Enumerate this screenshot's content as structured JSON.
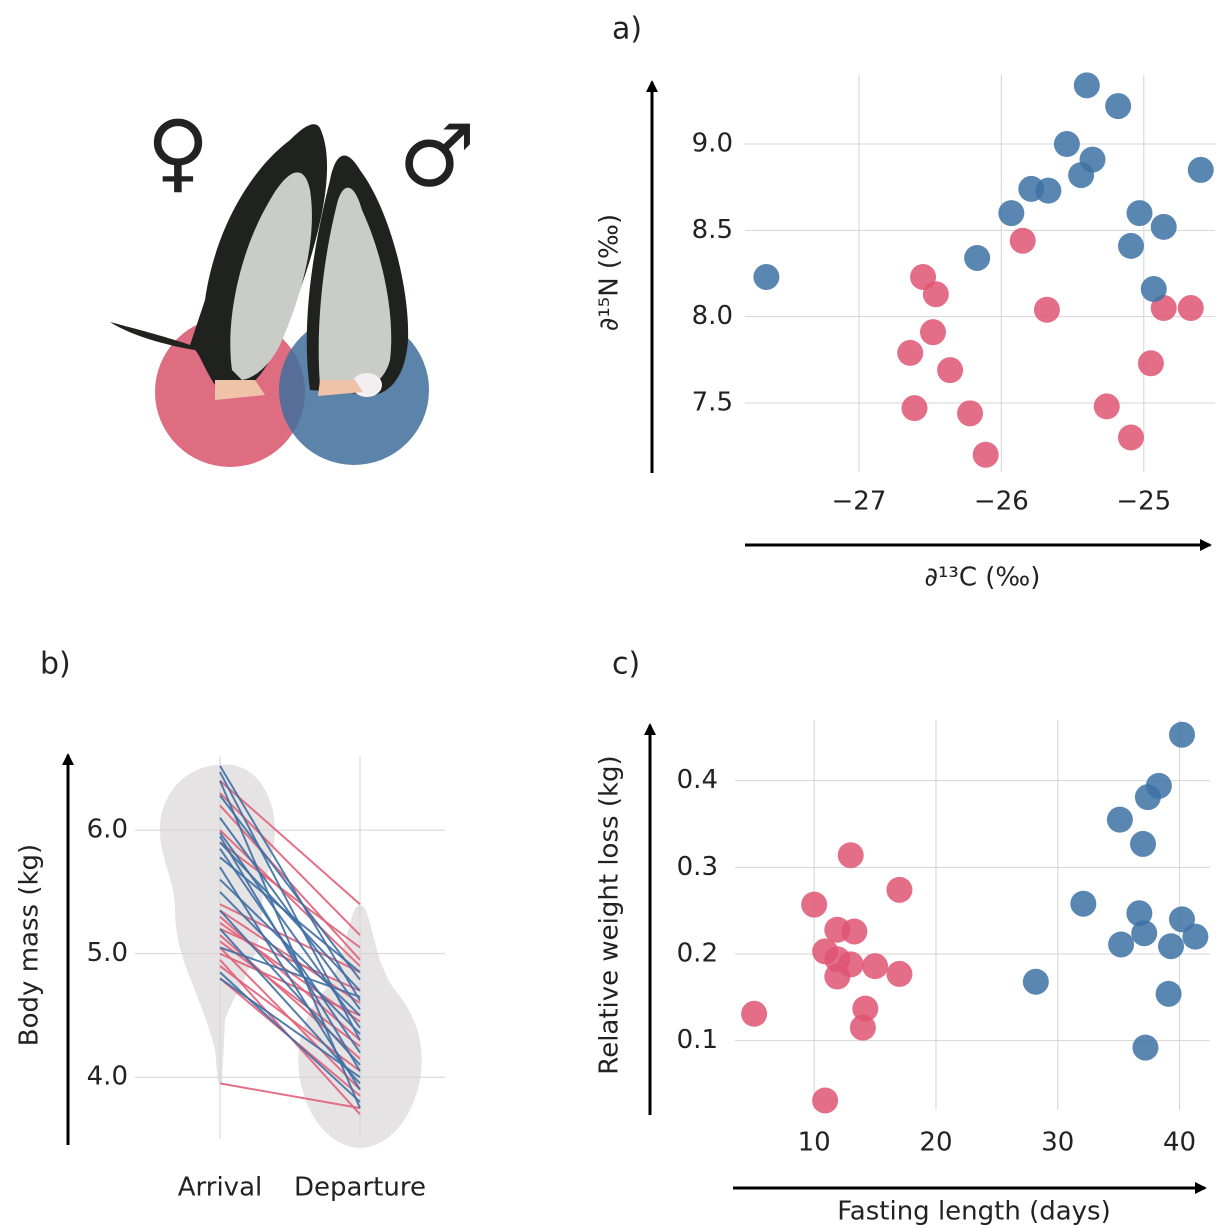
{
  "chart_data": [
    {
      "type": "scatter",
      "title": "a)",
      "x_label": "∂¹³C (‰)",
      "y_label": "∂¹⁵N (‰)",
      "xlim": [
        -27.8,
        -24.5
      ],
      "ylim": [
        7.1,
        9.4
      ],
      "xticks": [
        {
          "value": -27,
          "label": "−27"
        },
        {
          "value": -26,
          "label": "−26"
        },
        {
          "value": -25,
          "label": "−25"
        }
      ],
      "yticks": [
        7.5,
        {
          "value": 8.0,
          "label": "8.0"
        },
        8.5,
        {
          "value": 9.0,
          "label": "9.0"
        }
      ],
      "grid": true,
      "series": [
        {
          "name": "♀",
          "color": "#df5572",
          "x": [
            -25.85,
            -26.55,
            -26.46,
            -25.68,
            -26.48,
            -26.64,
            -26.36,
            -26.61,
            -26.22,
            -26.11,
            -25.26,
            -25.09,
            -24.95,
            -24.86,
            -24.67
          ],
          "values": [
            8.44,
            8.23,
            8.13,
            8.04,
            7.91,
            7.79,
            7.69,
            7.47,
            7.44,
            7.2,
            7.48,
            7.3,
            7.73,
            8.05,
            8.05
          ]
        },
        {
          "name": "♂",
          "color": "#3d72a4",
          "x": [
            -27.65,
            -26.17,
            -25.93,
            -25.79,
            -25.67,
            -25.54,
            -25.44,
            -25.36,
            -25.4,
            -25.18,
            -25.09,
            -25.03,
            -24.86,
            -24.93,
            -24.6
          ],
          "values": [
            8.23,
            8.34,
            8.6,
            8.74,
            8.73,
            9.0,
            8.82,
            8.91,
            9.34,
            9.22,
            8.41,
            8.6,
            8.52,
            8.16,
            8.85
          ]
        }
      ]
    },
    {
      "type": "line",
      "title": "b)",
      "y_label": "Body mass (kg)",
      "categories": [
        "Arrival",
        "Departure"
      ],
      "ylim": [
        3.5,
        6.6
      ],
      "yticks": [
        {
          "value": 4.0,
          "label": "4.0"
        },
        {
          "value": 5.0,
          "label": "5.0"
        },
        {
          "value": 6.0,
          "label": "6.0"
        }
      ],
      "grid": true,
      "series": [
        {
          "color": "#e0607a",
          "values": [
            6.4,
            5.4
          ]
        },
        {
          "color": "#e0607a",
          "values": [
            6.3,
            5.15
          ]
        },
        {
          "color": "#e0607a",
          "values": [
            6.2,
            4.95
          ]
        },
        {
          "color": "#e0607a",
          "values": [
            6.0,
            4.9
          ]
        },
        {
          "color": "#e0607a",
          "values": [
            5.9,
            5.05
          ]
        },
        {
          "color": "#e0607a",
          "values": [
            5.4,
            4.85
          ]
        },
        {
          "color": "#e0607a",
          "values": [
            5.35,
            4.6
          ]
        },
        {
          "color": "#e0607a",
          "values": [
            5.3,
            4.3
          ]
        },
        {
          "color": "#e0607a",
          "values": [
            5.25,
            4.45
          ]
        },
        {
          "color": "#e0607a",
          "values": [
            5.2,
            4.7
          ]
        },
        {
          "color": "#e0607a",
          "values": [
            5.15,
            4.15
          ]
        },
        {
          "color": "#e0607a",
          "values": [
            5.1,
            4.25
          ]
        },
        {
          "color": "#e0607a",
          "values": [
            5.05,
            3.9
          ]
        },
        {
          "color": "#e0607a",
          "values": [
            5.0,
            4.5
          ]
        },
        {
          "color": "#e0607a",
          "values": [
            4.95,
            3.7
          ]
        },
        {
          "color": "#e0607a",
          "values": [
            4.9,
            4.05
          ]
        },
        {
          "color": "#e0607a",
          "values": [
            4.8,
            3.85
          ]
        },
        {
          "color": "#e0607a",
          "values": [
            3.95,
            3.75
          ]
        },
        {
          "color": "#3f6fa3",
          "values": [
            6.52,
            4.62
          ]
        },
        {
          "color": "#3f6fa3",
          "values": [
            6.47,
            4.3
          ]
        },
        {
          "color": "#3f6fa3",
          "values": [
            6.4,
            3.75
          ]
        },
        {
          "color": "#3f6fa3",
          "values": [
            6.28,
            4.79
          ]
        },
        {
          "color": "#3f6fa3",
          "values": [
            6.1,
            4.55
          ]
        },
        {
          "color": "#3f6fa3",
          "values": [
            5.98,
            4.4
          ]
        },
        {
          "color": "#3f6fa3",
          "values": [
            5.95,
            4.05
          ]
        },
        {
          "color": "#3f6fa3",
          "values": [
            5.9,
            4.7
          ]
        },
        {
          "color": "#3f6fa3",
          "values": [
            5.85,
            4.2
          ]
        },
        {
          "color": "#3f6fa3",
          "values": [
            5.78,
            4.85
          ]
        },
        {
          "color": "#3f6fa3",
          "values": [
            5.7,
            3.9
          ]
        },
        {
          "color": "#3f6fa3",
          "values": [
            5.6,
            4.5
          ]
        },
        {
          "color": "#3f6fa3",
          "values": [
            5.5,
            4.35
          ]
        },
        {
          "color": "#3f6fa3",
          "values": [
            5.35,
            4.1
          ]
        },
        {
          "color": "#3f6fa3",
          "values": [
            5.2,
            3.95
          ]
        },
        {
          "color": "#3f6fa3",
          "values": [
            5.05,
            4.65
          ]
        },
        {
          "color": "#3f6fa3",
          "values": [
            4.8,
            4.0
          ]
        },
        {
          "color": "#3f6fa3",
          "values": [
            4.85,
            3.8
          ]
        }
      ]
    },
    {
      "type": "scatter",
      "title": "c)",
      "x_label": "Fasting length (days)",
      "y_label": "Relative weight loss (kg)",
      "xlim": [
        3.5,
        42.5
      ],
      "ylim": [
        0.02,
        0.47
      ],
      "xticks": [
        10,
        20,
        30,
        40
      ],
      "yticks": [
        0.1,
        0.2,
        0.3,
        0.4
      ],
      "grid": true,
      "series": [
        {
          "color": "#df5572",
          "x": [
            5.07,
            10.0,
            10.9,
            11.9,
            13.0,
            13.3,
            11.9,
            11.9,
            13.0,
            15.0,
            14.2,
            14.0,
            17.0,
            17.0,
            10.9
          ],
          "values": [
            0.131,
            0.257,
            0.203,
            0.228,
            0.314,
            0.226,
            0.194,
            0.174,
            0.188,
            0.186,
            0.137,
            0.115,
            0.274,
            0.177,
            0.031
          ]
        },
        {
          "color": "#3d72a4",
          "x": [
            28.2,
            32.1,
            35.1,
            37.2,
            35.2,
            36.7,
            37.1,
            37.0,
            37.4,
            38.3,
            39.1,
            39.3,
            40.2,
            41.3,
            40.2
          ],
          "values": [
            0.168,
            0.258,
            0.355,
            0.092,
            0.211,
            0.247,
            0.224,
            0.327,
            0.381,
            0.394,
            0.154,
            0.209,
            0.24,
            0.22,
            0.453
          ]
        }
      ]
    }
  ]
}
